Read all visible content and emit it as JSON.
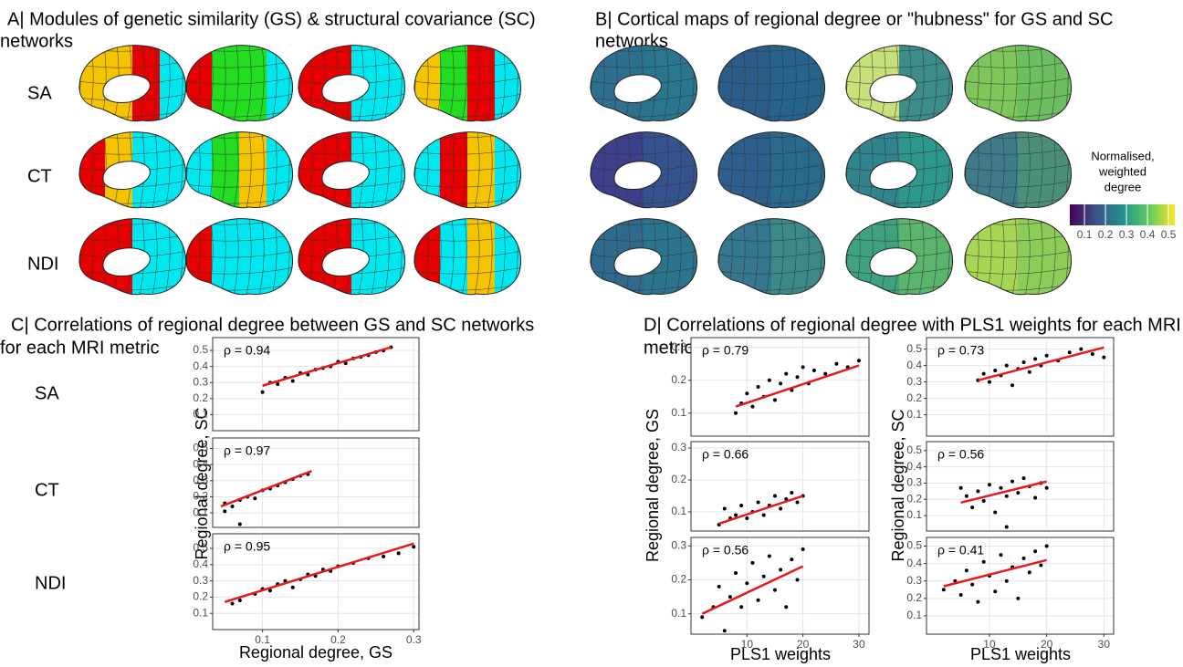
{
  "panels": {
    "A": {
      "title": [
        "A| Modules of  genetic similarity (GS) & structural covariance (SC)",
        "networks"
      ],
      "rows": [
        "SA",
        "CT",
        "NDI"
      ]
    },
    "B": {
      "title": [
        "B| Cortical maps of regional degree or \"hubness\" for GS and SC",
        "networks"
      ],
      "colorbar": {
        "title": [
          "Normalised,",
          "weighted",
          "degree"
        ],
        "clim": [
          0.03,
          0.53
        ],
        "ticks": [
          0.1,
          0.2,
          0.3,
          0.4,
          0.5
        ]
      }
    },
    "C": {
      "title": [
        "C| Correlations of regional degree between GS and SC networks",
        "for each MRI metric"
      ],
      "rows": [
        "SA",
        "CT",
        "NDI"
      ],
      "xlabel": "Regional degree, GS",
      "ylabel": "Regional degree, SC"
    },
    "D": {
      "title": [
        "D| Correlations of regional degree with PLS1 weights for each MRI",
        "metric"
      ],
      "xlabel_left": "PLS1 weights",
      "ylabel_left": "Regional degree, GS",
      "xlabel_right": "PLS1 weights",
      "ylabel_right": "Regional degree, SC"
    }
  },
  "chart_data": [
    {
      "type": "scatter",
      "annotation": "ρ = 0.94",
      "color": "#000000",
      "fit_color": "#e41a1c",
      "grid": true,
      "xlim": [
        0.034,
        0.307
      ],
      "ylim": [
        0,
        0.58
      ],
      "xticks": [
        0.1,
        0.2,
        0.3
      ],
      "yticks": [
        0.1,
        0.2,
        0.3,
        0.4,
        0.5
      ],
      "x": [
        0.1,
        0.11,
        0.12,
        0.13,
        0.14,
        0.15,
        0.16,
        0.17,
        0.18,
        0.19,
        0.2,
        0.21,
        0.22,
        0.23,
        0.24,
        0.25,
        0.26,
        0.27
      ],
      "y": [
        0.24,
        0.3,
        0.29,
        0.33,
        0.31,
        0.36,
        0.35,
        0.38,
        0.39,
        0.4,
        0.43,
        0.42,
        0.45,
        0.46,
        0.47,
        0.49,
        0.5,
        0.52
      ],
      "fit": {
        "x": [
          0.1,
          0.27
        ],
        "y": [
          0.28,
          0.52
        ]
      }
    },
    {
      "type": "scatter",
      "annotation": "ρ = 0.97",
      "color": "#000000",
      "fit_color": "#e41a1c",
      "grid": true,
      "xlim": [
        0.034,
        0.307
      ],
      "ylim": [
        0.01,
        0.565
      ],
      "xticks": [
        0.1,
        0.2,
        0.3
      ],
      "yticks": [
        0.1,
        0.2,
        0.3,
        0.4,
        0.5
      ],
      "x": [
        0.05,
        0.05,
        0.06,
        0.07,
        0.07,
        0.08,
        0.09,
        0.1,
        0.11,
        0.12,
        0.13,
        0.14,
        0.15,
        0.16
      ],
      "y": [
        0.11,
        0.16,
        0.14,
        0.03,
        0.18,
        0.2,
        0.19,
        0.24,
        0.25,
        0.27,
        0.29,
        0.31,
        0.33,
        0.34
      ],
      "fit": {
        "x": [
          0.045,
          0.165
        ],
        "y": [
          0.14,
          0.36
        ]
      }
    },
    {
      "type": "scatter",
      "annotation": "ρ = 0.95",
      "color": "#000000",
      "fit_color": "#e41a1c",
      "grid": true,
      "xlim": [
        0.034,
        0.307
      ],
      "ylim": [
        0,
        0.59
      ],
      "xticks": [
        0.1,
        0.2,
        0.3
      ],
      "yticks": [
        0.1,
        0.2,
        0.3,
        0.4,
        0.5
      ],
      "x": [
        0.06,
        0.07,
        0.09,
        0.1,
        0.11,
        0.12,
        0.13,
        0.14,
        0.15,
        0.16,
        0.17,
        0.18,
        0.19,
        0.2,
        0.22,
        0.24,
        0.26,
        0.28,
        0.3
      ],
      "y": [
        0.16,
        0.18,
        0.22,
        0.25,
        0.24,
        0.28,
        0.3,
        0.26,
        0.31,
        0.34,
        0.33,
        0.37,
        0.36,
        0.39,
        0.41,
        0.44,
        0.45,
        0.47,
        0.51
      ],
      "fit": {
        "x": [
          0.05,
          0.3
        ],
        "y": [
          0.17,
          0.53
        ]
      }
    },
    {
      "type": "scatter",
      "annotation": "ρ = 0.79",
      "color": "#000000",
      "fit_color": "#e41a1c",
      "grid": true,
      "xlim": [
        0,
        31.8
      ],
      "ylim": [
        0.03,
        0.33
      ],
      "xticks": [
        10,
        20,
        30
      ],
      "yticks": [
        0.1,
        0.2,
        0.3
      ],
      "x": [
        8,
        9,
        10,
        11,
        12,
        13,
        14,
        15,
        16,
        17,
        18,
        19,
        20,
        21,
        22,
        24,
        26,
        28,
        30
      ],
      "y": [
        0.1,
        0.13,
        0.16,
        0.12,
        0.18,
        0.15,
        0.2,
        0.14,
        0.19,
        0.22,
        0.17,
        0.21,
        0.24,
        0.19,
        0.23,
        0.22,
        0.25,
        0.24,
        0.26
      ],
      "fit": {
        "x": [
          8,
          30
        ],
        "y": [
          0.12,
          0.245
        ]
      }
    },
    {
      "type": "scatter",
      "annotation": "ρ = 0.66",
      "color": "#000000",
      "fit_color": "#e41a1c",
      "grid": true,
      "xlim": [
        0,
        31.8
      ],
      "ylim": [
        0.04,
        0.32
      ],
      "xticks": [
        10,
        20,
        30
      ],
      "yticks": [
        0.1,
        0.2,
        0.3
      ],
      "x": [
        5,
        6,
        7,
        8,
        9,
        10,
        11,
        12,
        13,
        14,
        15,
        16,
        17,
        18,
        19,
        20
      ],
      "y": [
        0.06,
        0.11,
        0.08,
        0.09,
        0.12,
        0.08,
        0.1,
        0.13,
        0.09,
        0.12,
        0.15,
        0.11,
        0.14,
        0.16,
        0.13,
        0.15
      ],
      "fit": {
        "x": [
          5,
          20
        ],
        "y": [
          0.063,
          0.15
        ]
      }
    },
    {
      "type": "scatter",
      "annotation": "ρ = 0.56",
      "color": "#000000",
      "fit_color": "#e41a1c",
      "grid": true,
      "xlim": [
        0,
        31.8
      ],
      "ylim": [
        0.04,
        0.325
      ],
      "xticks": [
        10,
        20,
        30
      ],
      "yticks": [
        0.1,
        0.2,
        0.3
      ],
      "x": [
        2,
        4,
        5,
        6,
        7,
        8,
        9,
        10,
        11,
        12,
        13,
        14,
        15,
        16,
        17,
        18,
        19,
        20
      ],
      "y": [
        0.09,
        0.12,
        0.18,
        0.05,
        0.15,
        0.22,
        0.12,
        0.19,
        0.25,
        0.14,
        0.21,
        0.27,
        0.17,
        0.23,
        0.12,
        0.26,
        0.2,
        0.29
      ],
      "fit": {
        "x": [
          2,
          20
        ],
        "y": [
          0.1,
          0.24
        ]
      }
    },
    {
      "type": "scatter",
      "annotation": "ρ = 0.73",
      "color": "#000000",
      "fit_color": "#e41a1c",
      "grid": true,
      "xlim": [
        -1,
        31.7
      ],
      "ylim": [
        -0.03,
        0.57
      ],
      "xticks": [
        10,
        20,
        30
      ],
      "yticks": [
        0.1,
        0.2,
        0.3,
        0.4,
        0.5
      ],
      "x": [
        8,
        9,
        10,
        11,
        12,
        13,
        14,
        15,
        16,
        17,
        18,
        19,
        20,
        22,
        24,
        26,
        28,
        30
      ],
      "y": [
        0.31,
        0.35,
        0.3,
        0.37,
        0.34,
        0.4,
        0.28,
        0.38,
        0.42,
        0.36,
        0.44,
        0.4,
        0.46,
        0.43,
        0.48,
        0.5,
        0.47,
        0.45
      ],
      "fit": {
        "x": [
          8,
          30
        ],
        "y": [
          0.31,
          0.51
        ]
      }
    },
    {
      "type": "scatter",
      "annotation": "ρ = 0.56",
      "color": "#000000",
      "fit_color": "#e41a1c",
      "grid": true,
      "xlim": [
        -1,
        31.7
      ],
      "ylim": [
        0.005,
        0.555
      ],
      "xticks": [
        10,
        20,
        30
      ],
      "yticks": [
        0.1,
        0.2,
        0.3,
        0.4,
        0.5
      ],
      "x": [
        5,
        6,
        7,
        8,
        9,
        10,
        11,
        12,
        13,
        13,
        14,
        15,
        16,
        17,
        18,
        19,
        20
      ],
      "y": [
        0.27,
        0.22,
        0.15,
        0.25,
        0.19,
        0.29,
        0.12,
        0.27,
        0.22,
        0.03,
        0.31,
        0.24,
        0.33,
        0.28,
        0.21,
        0.3,
        0.27
      ],
      "fit": {
        "x": [
          5,
          20
        ],
        "y": [
          0.18,
          0.31
        ]
      }
    },
    {
      "type": "scatter",
      "annotation": "ρ = 0.41",
      "color": "#000000",
      "fit_color": "#e41a1c",
      "grid": true,
      "xlim": [
        -1,
        31.7
      ],
      "ylim": [
        -0.005,
        0.55
      ],
      "xticks": [
        10,
        20,
        30
      ],
      "yticks": [
        0.1,
        0.2,
        0.3,
        0.4,
        0.5
      ],
      "x": [
        2,
        4,
        5,
        6,
        7,
        8,
        9,
        10,
        11,
        12,
        13,
        14,
        15,
        16,
        17,
        18,
        19,
        20
      ],
      "y": [
        0.25,
        0.3,
        0.22,
        0.36,
        0.28,
        0.18,
        0.41,
        0.33,
        0.24,
        0.45,
        0.3,
        0.38,
        0.2,
        0.43,
        0.35,
        0.47,
        0.39,
        0.5
      ],
      "fit": {
        "x": [
          2,
          20
        ],
        "y": [
          0.27,
          0.42
        ]
      }
    }
  ]
}
